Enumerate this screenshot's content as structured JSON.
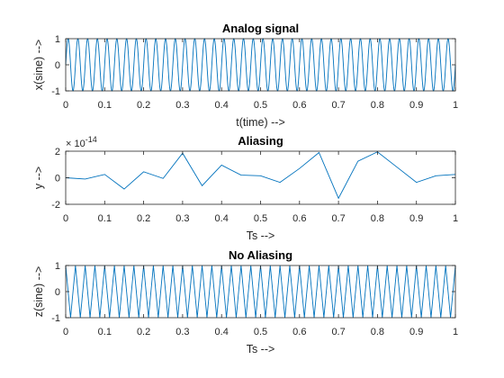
{
  "chart_data": [
    {
      "type": "line",
      "title": "Analog signal",
      "xlabel": "t(time) -->",
      "ylabel": "x(sine) -->",
      "xlim": [
        0,
        1
      ],
      "ylim": [
        -1,
        1
      ],
      "xticks": [
        0,
        0.1,
        0.2,
        0.3,
        0.4,
        0.5,
        0.6,
        0.7,
        0.8,
        0.9,
        1
      ],
      "xticklabels": [
        "0",
        "0.1",
        "0.2",
        "0.3",
        "0.4",
        "0.5",
        "0.6",
        "0.7",
        "0.8",
        "0.9",
        "1"
      ],
      "yticks": [
        -1,
        0,
        1
      ],
      "yticklabels": [
        "-1",
        "0",
        "1"
      ],
      "grid": false,
      "color": "#0072BD",
      "series": [
        {
          "function": "sin(2*pi*f*t)",
          "frequency": 40,
          "amplitude": 1
        }
      ]
    },
    {
      "type": "line",
      "title": "Aliasing",
      "xlabel": "Ts -->",
      "ylabel": "y -->",
      "xlim": [
        0,
        1
      ],
      "ylim": [
        -2,
        2
      ],
      "y_exponent_label": "× 10^-14",
      "y_exponent_base": "10",
      "y_exponent_power": "-14",
      "xticks": [
        0,
        0.1,
        0.2,
        0.3,
        0.4,
        0.5,
        0.6,
        0.7,
        0.8,
        0.9,
        1
      ],
      "xticklabels": [
        "0",
        "0.1",
        "0.2",
        "0.3",
        "0.4",
        "0.5",
        "0.6",
        "0.7",
        "0.8",
        "0.9",
        "1"
      ],
      "yticks": [
        -2,
        0,
        2
      ],
      "yticklabels": [
        "-2",
        "0",
        "2"
      ],
      "grid": false,
      "color": "#0072BD",
      "series": [
        {
          "x": [
            0,
            0.05,
            0.1,
            0.15,
            0.2,
            0.25,
            0.3,
            0.35,
            0.4,
            0.45,
            0.5,
            0.55,
            0.6,
            0.65,
            0.7,
            0.75,
            0.8,
            0.85,
            0.9,
            0.95,
            1.0
          ],
          "y": [
            0,
            -0.1,
            0.25,
            -0.85,
            0.45,
            -0.05,
            1.85,
            -0.6,
            0.95,
            0.2,
            0.15,
            -0.35,
            0.7,
            1.9,
            -1.55,
            1.25,
            1.95,
            0.8,
            -0.35,
            0.15,
            0.25
          ]
        }
      ]
    },
    {
      "type": "line",
      "title": "No Aliasing",
      "xlabel": "Ts -->",
      "ylabel": "z(sine) -->",
      "xlim": [
        0,
        1
      ],
      "ylim": [
        -1,
        1
      ],
      "xticks": [
        0,
        0.1,
        0.2,
        0.3,
        0.4,
        0.5,
        0.6,
        0.7,
        0.8,
        0.9,
        1
      ],
      "xticklabels": [
        "0",
        "0.1",
        "0.2",
        "0.3",
        "0.4",
        "0.5",
        "0.6",
        "0.7",
        "0.8",
        "0.9",
        "1"
      ],
      "yticks": [
        -1,
        0,
        1
      ],
      "yticklabels": [
        "-1",
        "0",
        "1"
      ],
      "grid": false,
      "color": "#0072BD",
      "series": [
        {
          "function": "sampled sin(2*pi*f*t)",
          "frequency": 40,
          "amplitude": 1,
          "samples_per_period": 2
        }
      ]
    }
  ]
}
